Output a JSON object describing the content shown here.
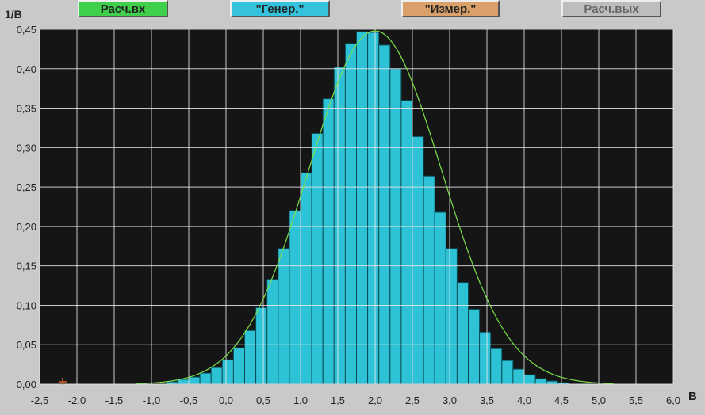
{
  "toolbar": {
    "buttons": [
      {
        "label": "Расч.вх",
        "color": "#3fcf4a"
      },
      {
        "label": "\"Генер.\"",
        "color": "#35c2dd"
      },
      {
        "label": "\"Измер.\"",
        "color": "#d9a06a"
      },
      {
        "label": "Расч.вых",
        "color": "#bdbdbd"
      }
    ]
  },
  "axes": {
    "y_unit": "1/В",
    "x_unit": "В"
  },
  "colors": {
    "plot_bg": "#151515",
    "bar": "#2ec2d6",
    "grid": "#e8e8e8",
    "curve": "#7be04a"
  },
  "chart_data": {
    "type": "bar",
    "title": "",
    "xlabel": "В",
    "ylabel": "1/В",
    "xlim": [
      -2.5,
      6.0
    ],
    "ylim": [
      0.0,
      0.45
    ],
    "x_ticks": [
      "-2,5",
      "-2,0",
      "-1,5",
      "-1,0",
      "-0,5",
      "0,0",
      "0,5",
      "1,0",
      "1,5",
      "2,0",
      "2,5",
      "3,0",
      "3,5",
      "4,0",
      "4,5",
      "5,0",
      "5,5",
      "6,0"
    ],
    "y_ticks": [
      "0,00",
      "0,05",
      "0,10",
      "0,15",
      "0,20",
      "0,25",
      "0,30",
      "0,35",
      "0,40",
      "0,45"
    ],
    "bin_width": 0.15,
    "bin_start": -0.8,
    "values": [
      0.003,
      0.006,
      0.009,
      0.014,
      0.021,
      0.031,
      0.046,
      0.068,
      0.097,
      0.133,
      0.172,
      0.22,
      0.268,
      0.318,
      0.362,
      0.402,
      0.432,
      0.447,
      0.446,
      0.43,
      0.4,
      0.36,
      0.314,
      0.264,
      0.218,
      0.172,
      0.129,
      0.095,
      0.066,
      0.045,
      0.03,
      0.019,
      0.012,
      0.007,
      0.004,
      0.002
    ],
    "curve": {
      "type": "normal",
      "mean": 2.0,
      "sd": 0.89,
      "peak": 0.448
    },
    "grid": true
  }
}
